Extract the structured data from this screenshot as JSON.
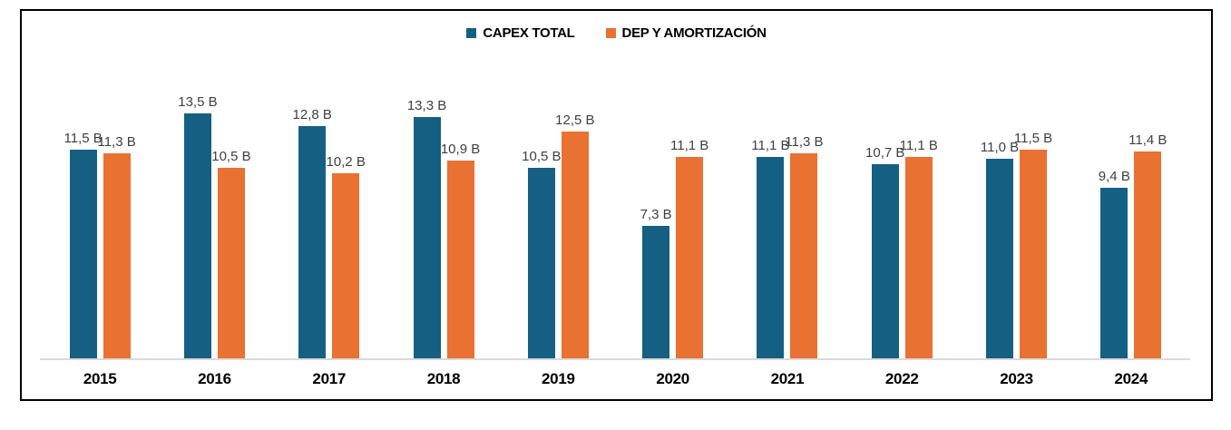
{
  "frame": {
    "background": "#FFFFFF",
    "border_color": "#000000"
  },
  "chart_data": {
    "type": "bar",
    "title": "",
    "xlabel": "",
    "ylabel": "",
    "categories": [
      "2015",
      "2016",
      "2017",
      "2018",
      "2019",
      "2020",
      "2021",
      "2022",
      "2023",
      "2024"
    ],
    "series": [
      {
        "name": "CAPEX TOTAL",
        "color": "#156082",
        "values": [
          11.5,
          13.5,
          12.8,
          13.3,
          10.5,
          7.3,
          11.1,
          10.7,
          11.0,
          9.4
        ],
        "labels": [
          "11,5 B",
          "13,5 B",
          "12,8 B",
          "13,3 B",
          "10,5 B",
          "7,3 B",
          "11,1 B",
          "10,7 B",
          "11,0 B",
          "9,4 B"
        ]
      },
      {
        "name": "DEP Y AMORTIZACIÓN",
        "color": "#E97132",
        "values": [
          11.3,
          10.5,
          10.2,
          10.9,
          12.5,
          11.1,
          11.3,
          11.1,
          11.5,
          11.4
        ],
        "labels": [
          "11,3 B",
          "10,5 B",
          "10,2 B",
          "10,9 B",
          "12,5 B",
          "11,1 B",
          "11,3 B",
          "11,1 B",
          "11,5 B",
          "11,4 B"
        ]
      }
    ],
    "ylim": [
      0,
      14
    ],
    "grid": false,
    "legend_position": "top",
    "value_label_color": "#404040",
    "axis_line_color": "#D9D9D9"
  }
}
